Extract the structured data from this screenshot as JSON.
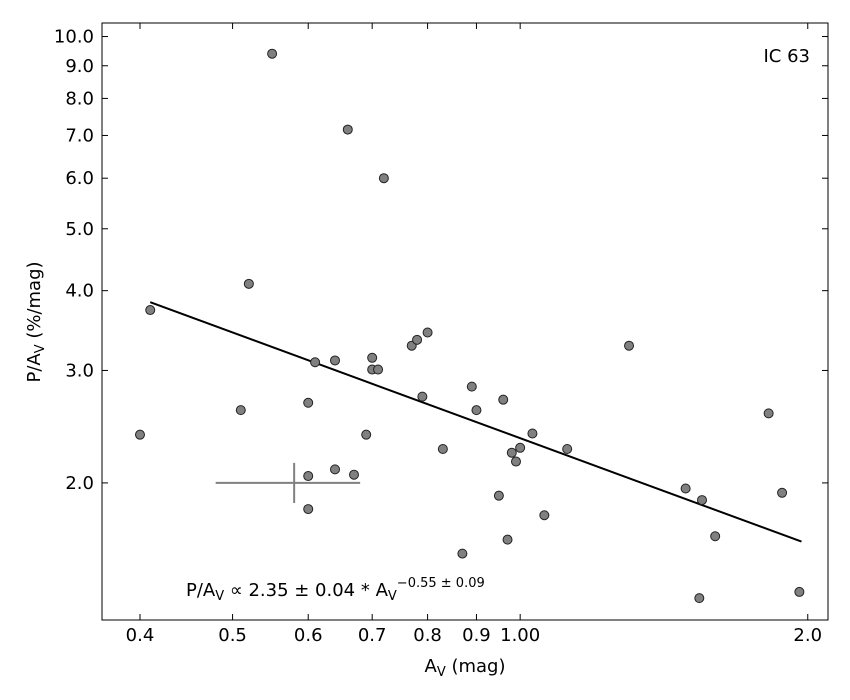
{
  "chart_data": {
    "type": "scatter",
    "x_scale": "log",
    "y_scale": "log",
    "xlim": [
      0.365,
      2.1
    ],
    "ylim": [
      1.22,
      10.5
    ],
    "xlabel": "A_V (mag)",
    "ylabel": "P/A_V (%/mag)",
    "annotation": "IC 63",
    "fit_label": {
      "prefix": "P/A",
      "prefix_sub": "V",
      "middle": " ∝ 2.35 ± 0.04 * A",
      "middle_sub": "V",
      "exponent": "−0.55 ± 0.09"
    },
    "x_ticks": [
      {
        "value": 0.4,
        "label": "0.4"
      },
      {
        "value": 0.5,
        "label": "0.5"
      },
      {
        "value": 0.6,
        "label": "0.6"
      },
      {
        "value": 0.7,
        "label": "0.7"
      },
      {
        "value": 0.8,
        "label": "0.8"
      },
      {
        "value": 0.9,
        "label": "0.9"
      },
      {
        "value": 1.0,
        "label": "1.00"
      },
      {
        "value": 2.0,
        "label": "2.0"
      }
    ],
    "y_ticks": [
      {
        "value": 2.0,
        "label": "2.0"
      },
      {
        "value": 3.0,
        "label": "3.0"
      },
      {
        "value": 4.0,
        "label": "4.0"
      },
      {
        "value": 5.0,
        "label": "5.0"
      },
      {
        "value": 6.0,
        "label": "6.0"
      },
      {
        "value": 7.0,
        "label": "7.0"
      },
      {
        "value": 8.0,
        "label": "8.0"
      },
      {
        "value": 9.0,
        "label": "9.0"
      },
      {
        "value": 10.0,
        "label": "10.0"
      }
    ],
    "fit_line": {
      "amplitude": 2.35,
      "exponent": -0.55,
      "x_range": [
        0.41,
        1.97
      ]
    },
    "error_bar": {
      "x": 0.58,
      "y": 2.0,
      "x_err": [
        0.48,
        0.68
      ],
      "y_err": [
        1.86,
        2.15
      ]
    },
    "points": [
      {
        "x": 0.4,
        "y": 2.38
      },
      {
        "x": 0.41,
        "y": 3.73
      },
      {
        "x": 0.51,
        "y": 2.6
      },
      {
        "x": 0.52,
        "y": 4.1
      },
      {
        "x": 0.55,
        "y": 9.4
      },
      {
        "x": 0.6,
        "y": 2.67
      },
      {
        "x": 0.6,
        "y": 2.05
      },
      {
        "x": 0.6,
        "y": 1.82
      },
      {
        "x": 0.61,
        "y": 3.09
      },
      {
        "x": 0.64,
        "y": 2.1
      },
      {
        "x": 0.64,
        "y": 3.11
      },
      {
        "x": 0.66,
        "y": 7.15
      },
      {
        "x": 0.67,
        "y": 2.06
      },
      {
        "x": 0.69,
        "y": 2.38
      },
      {
        "x": 0.7,
        "y": 3.14
      },
      {
        "x": 0.7,
        "y": 3.01
      },
      {
        "x": 0.71,
        "y": 3.01
      },
      {
        "x": 0.72,
        "y": 6.0
      },
      {
        "x": 0.77,
        "y": 3.28
      },
      {
        "x": 0.78,
        "y": 3.35
      },
      {
        "x": 0.79,
        "y": 2.73
      },
      {
        "x": 0.8,
        "y": 3.44
      },
      {
        "x": 0.83,
        "y": 2.26
      },
      {
        "x": 0.87,
        "y": 1.55
      },
      {
        "x": 0.89,
        "y": 2.83
      },
      {
        "x": 0.9,
        "y": 2.6
      },
      {
        "x": 0.95,
        "y": 1.91
      },
      {
        "x": 0.96,
        "y": 2.7
      },
      {
        "x": 0.97,
        "y": 1.63
      },
      {
        "x": 0.98,
        "y": 2.23
      },
      {
        "x": 0.99,
        "y": 2.16
      },
      {
        "x": 1.0,
        "y": 2.27
      },
      {
        "x": 1.03,
        "y": 2.39
      },
      {
        "x": 1.06,
        "y": 1.78
      },
      {
        "x": 1.12,
        "y": 2.26
      },
      {
        "x": 1.3,
        "y": 3.28
      },
      {
        "x": 1.49,
        "y": 1.96
      },
      {
        "x": 1.54,
        "y": 1.32
      },
      {
        "x": 1.55,
        "y": 1.88
      },
      {
        "x": 1.6,
        "y": 1.65
      },
      {
        "x": 1.82,
        "y": 2.57
      },
      {
        "x": 1.88,
        "y": 1.93
      },
      {
        "x": 1.96,
        "y": 1.35
      }
    ]
  }
}
